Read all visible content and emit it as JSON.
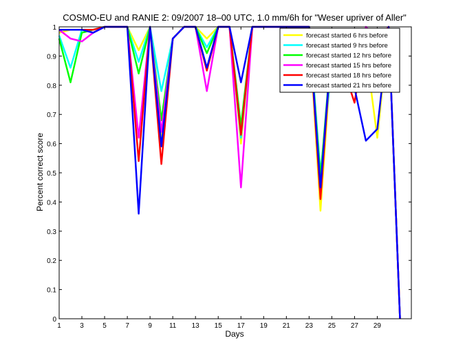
{
  "chart_data": {
    "type": "line",
    "title": "COSMO-EU and RANIE 2: 09/2007 18–00 UTC, 1.0 mm/6h for \"Weser upriver of Aller\"",
    "xlabel": "Days",
    "ylabel": "Percent correct score",
    "xlim": [
      1,
      32
    ],
    "ylim": [
      0,
      1
    ],
    "grid": false,
    "legend_position": "top-right",
    "x_ticks": [
      1,
      3,
      5,
      7,
      9,
      11,
      13,
      15,
      17,
      19,
      21,
      23,
      25,
      27,
      29
    ],
    "y_ticks": [
      0,
      0.1,
      0.2,
      0.3,
      0.4,
      0.5,
      0.6,
      0.7,
      0.8,
      0.9,
      1
    ],
    "y_tick_labels": [
      "0",
      "0.1",
      "0.2",
      "0.3",
      "0.4",
      "0.5",
      "0.6",
      "0.7",
      "0.8",
      "0.9",
      "1"
    ],
    "x": [
      1,
      2,
      3,
      4,
      5,
      6,
      7,
      8,
      9,
      10,
      11,
      12,
      13,
      14,
      15,
      16,
      17,
      18,
      19,
      20,
      21,
      22,
      23,
      24,
      25,
      26,
      27,
      28,
      29,
      30,
      31
    ],
    "series": [
      {
        "name": "forecast started 6 hrs before",
        "color": "#ffff00",
        "values": [
          0.98,
          0.99,
          0.99,
          0.99,
          1,
          1,
          1,
          0.92,
          1,
          0.62,
          0.96,
          1,
          1,
          0.96,
          1,
          1,
          0.6,
          1,
          1,
          1,
          1,
          1,
          1,
          0.37,
          0.93,
          0.86,
          0.8,
          0.92,
          0.62,
          1,
          0
        ]
      },
      {
        "name": "forecast started 9 hrs before",
        "color": "#00ffff",
        "values": [
          0.97,
          0.86,
          0.99,
          0.99,
          1,
          1,
          1,
          0.88,
          1,
          0.78,
          0.96,
          1,
          1,
          0.93,
          1,
          1,
          0.62,
          1,
          1,
          1,
          1,
          1,
          1,
          0.5,
          0.87,
          0.79,
          0.85,
          0.95,
          0.89,
          1,
          0
        ]
      },
      {
        "name": "forecast started 12 hrs before",
        "color": "#00ff00",
        "values": [
          0.96,
          0.81,
          0.98,
          0.99,
          1,
          1,
          1,
          0.84,
          1,
          0.68,
          0.96,
          1,
          1,
          0.91,
          1,
          1,
          0.66,
          1,
          1,
          1,
          1,
          1,
          1,
          0.48,
          0.95,
          0.86,
          0.83,
          0.99,
          0.91,
          1,
          0
        ]
      },
      {
        "name": "forecast started 15 hrs before",
        "color": "#ff00ff",
        "values": [
          0.99,
          0.96,
          0.95,
          0.98,
          1,
          1,
          1,
          0.62,
          1,
          0.64,
          0.96,
          1,
          1,
          0.78,
          1,
          1,
          0.45,
          1,
          1,
          1,
          1,
          1,
          1,
          0.44,
          0.95,
          0.86,
          0.78,
          1,
          0.96,
          1,
          0
        ]
      },
      {
        "name": "forecast started 18 hrs before",
        "color": "#ff0000",
        "values": [
          0.99,
          0.99,
          0.99,
          0.99,
          1,
          1,
          1,
          0.54,
          1,
          0.53,
          0.96,
          1,
          1,
          0.85,
          1,
          1,
          0.63,
          1,
          1,
          1,
          1,
          1,
          1,
          0.41,
          0.95,
          0.86,
          0.74,
          0.98,
          0.93,
          1,
          0
        ]
      },
      {
        "name": "forecast started 21 hrs before",
        "color": "#0000ff",
        "values": [
          0.99,
          0.99,
          0.99,
          0.98,
          1,
          1,
          1,
          0.36,
          1,
          0.59,
          0.96,
          1,
          1,
          0.86,
          1,
          1,
          0.81,
          1,
          1,
          1,
          1,
          1,
          1,
          0.45,
          0.95,
          0.88,
          0.79,
          0.61,
          0.65,
          1,
          0
        ]
      }
    ]
  }
}
